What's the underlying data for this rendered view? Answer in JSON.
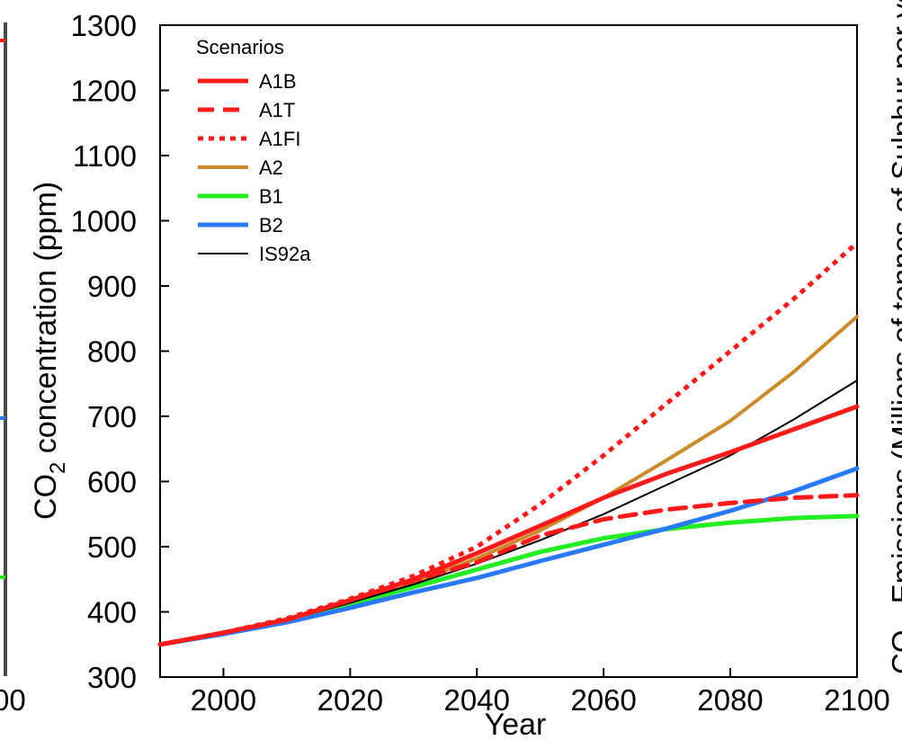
{
  "chart_data": {
    "type": "line",
    "xlabel": "Year",
    "ylabel": "CO",
    "ylabel_sub": "2",
    "ylabel_rest": " concentration (ppm)",
    "xlim": [
      1990,
      2100
    ],
    "ylim": [
      300,
      1300
    ],
    "xticks": [
      2000,
      2020,
      2040,
      2060,
      2080,
      2100
    ],
    "yticks": [
      300,
      400,
      500,
      600,
      700,
      800,
      900,
      1000,
      1100,
      1200,
      1300
    ],
    "grid": false,
    "legend": {
      "title": "Scenarios",
      "placement": "top-left"
    },
    "series": [
      {
        "name": "A1B",
        "color": "#ff1a1a",
        "style": "solid",
        "width": 5,
        "x": [
          1990,
          2000,
          2010,
          2020,
          2030,
          2040,
          2050,
          2060,
          2070,
          2080,
          2090,
          2100
        ],
        "y": [
          350,
          368,
          388,
          418,
          450,
          490,
          532,
          575,
          612,
          645,
          680,
          715
        ]
      },
      {
        "name": "A1T",
        "color": "#ff1a1a",
        "style": "dashed",
        "width": 5,
        "x": [
          1990,
          2000,
          2010,
          2020,
          2030,
          2040,
          2050,
          2060,
          2070,
          2080,
          2090,
          2100
        ],
        "y": [
          350,
          368,
          388,
          418,
          448,
          476,
          517,
          542,
          557,
          567,
          575,
          579
        ]
      },
      {
        "name": "A1FI",
        "color": "#ff1a1a",
        "style": "dotted",
        "width": 5,
        "x": [
          1990,
          2000,
          2010,
          2020,
          2030,
          2040,
          2050,
          2060,
          2070,
          2080,
          2090,
          2100
        ],
        "y": [
          350,
          368,
          390,
          420,
          455,
          500,
          565,
          640,
          720,
          800,
          880,
          966
        ]
      },
      {
        "name": "A2",
        "color": "#cc8a2a",
        "style": "solid",
        "width": 4,
        "x": [
          1990,
          2000,
          2010,
          2020,
          2030,
          2040,
          2050,
          2060,
          2070,
          2080,
          2090,
          2100
        ],
        "y": [
          350,
          368,
          388,
          415,
          445,
          482,
          525,
          575,
          633,
          693,
          768,
          853
        ]
      },
      {
        "name": "B1",
        "color": "#22ee22",
        "style": "solid",
        "width": 5,
        "x": [
          1990,
          2000,
          2010,
          2020,
          2030,
          2040,
          2050,
          2060,
          2070,
          2080,
          2090,
          2100
        ],
        "y": [
          350,
          368,
          386,
          412,
          438,
          465,
          492,
          513,
          527,
          537,
          544,
          547
        ]
      },
      {
        "name": "B2",
        "color": "#2a7aff",
        "style": "solid",
        "width": 5,
        "x": [
          1990,
          2000,
          2010,
          2020,
          2030,
          2040,
          2050,
          2060,
          2070,
          2080,
          2090,
          2100
        ],
        "y": [
          350,
          366,
          384,
          406,
          430,
          452,
          478,
          503,
          528,
          555,
          585,
          620
        ]
      },
      {
        "name": "IS92a",
        "color": "#000000",
        "style": "solid",
        "width": 2,
        "x": [
          1990,
          2000,
          2010,
          2020,
          2030,
          2040,
          2050,
          2060,
          2070,
          2080,
          2090,
          2100
        ],
        "y": [
          350,
          368,
          387,
          414,
          442,
          474,
          510,
          550,
          595,
          640,
          695,
          755
        ]
      }
    ]
  },
  "left_clip": {
    "tick_label": "00",
    "line_color": "#4a4a4a",
    "marker_colors": [
      "#ff1a1a",
      "#2a7aff",
      "#22ee22"
    ]
  },
  "right_clip": {
    "label": "CO",
    "label_rest": "Emissions (Millions of tonnes of Sulphur per year)"
  }
}
